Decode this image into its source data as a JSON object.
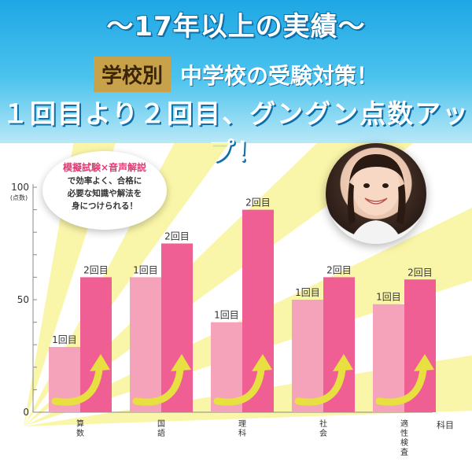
{
  "header": {
    "title": "〜17年以上の実績〜",
    "badge": "学校別",
    "subtitle1": "中学校の受験対策！",
    "subtitle2": "１回目より２回目、グングン点数アップ！"
  },
  "note": {
    "title": "模擬試験×音声解説",
    "body": "で効率よく、合格に\n必要な知識や解法を\n身につけられる！"
  },
  "colors": {
    "first": "#f4a3bb",
    "second": "#ef5f93",
    "label_first": "#333333",
    "rays": "#f9f59a",
    "arrow": "#e8e040"
  },
  "chart_data": {
    "type": "bar",
    "categories": [
      "算数",
      "国語",
      "理科",
      "社会",
      "適性検査"
    ],
    "series": [
      {
        "name": "1回目",
        "values": [
          29,
          60,
          40,
          50,
          48
        ]
      },
      {
        "name": "2回目",
        "values": [
          60,
          75,
          90,
          60,
          59
        ]
      }
    ],
    "ylabel": "(点数)",
    "xlabel": "科目",
    "ylim": [
      0,
      100
    ],
    "yticks": [
      0,
      50,
      100
    ],
    "legend": "none",
    "grid": false
  }
}
